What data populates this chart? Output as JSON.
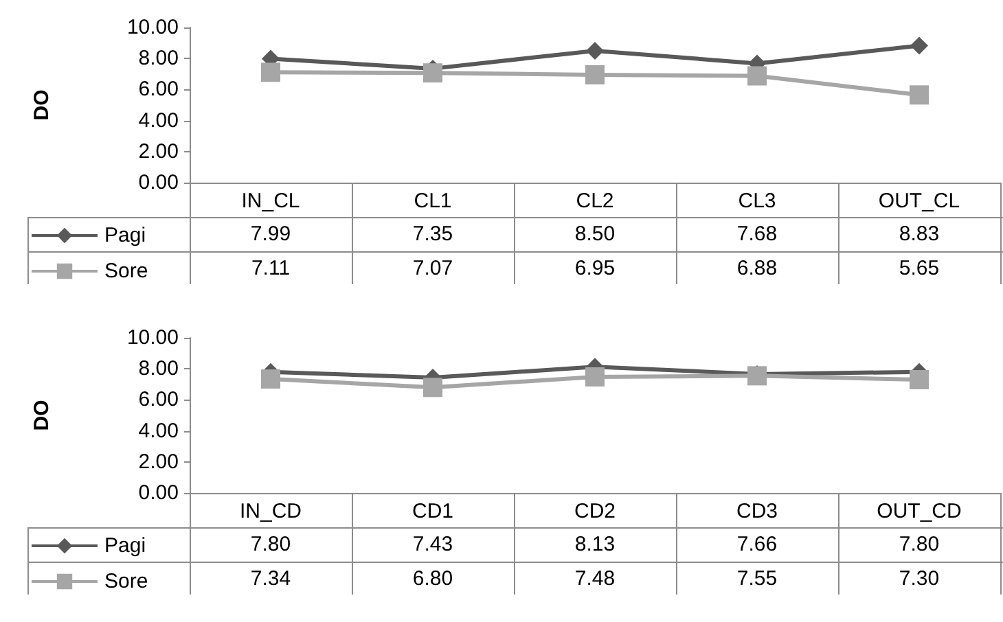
{
  "chart_data": [
    {
      "type": "line",
      "ylabel": "DO",
      "categories": [
        "IN_CL",
        "CL1",
        "CL2",
        "CL3",
        "OUT_CL"
      ],
      "series": [
        {
          "name": "Pagi",
          "color": "#595959",
          "marker": "diamond",
          "values": [
            7.99,
            7.35,
            8.5,
            7.68,
            8.83
          ],
          "value_labels": [
            "7.99",
            "7.35",
            "8.50",
            "7.68",
            "8.83"
          ]
        },
        {
          "name": "Sore",
          "color": "#a6a6a6",
          "marker": "square",
          "values": [
            7.11,
            7.07,
            6.95,
            6.88,
            5.65
          ],
          "value_labels": [
            "7.11",
            "7.07",
            "6.95",
            "6.88",
            "5.65"
          ]
        }
      ],
      "ylim": [
        0,
        10
      ],
      "yticks": [
        {
          "value": 0,
          "label": "0.00"
        },
        {
          "value": 2,
          "label": "2.00"
        },
        {
          "value": 4,
          "label": "4.00"
        },
        {
          "value": 6,
          "label": "6.00"
        },
        {
          "value": 8,
          "label": "8.00"
        },
        {
          "value": 10,
          "label": "10.00"
        }
      ],
      "grid": false,
      "legend": "bottom left"
    },
    {
      "type": "line",
      "ylabel": "DO",
      "categories": [
        "IN_CD",
        "CD1",
        "CD2",
        "CD3",
        "OUT_CD"
      ],
      "series": [
        {
          "name": "Pagi",
          "color": "#595959",
          "marker": "diamond",
          "values": [
            7.8,
            7.43,
            8.13,
            7.66,
            7.8
          ],
          "value_labels": [
            "7.80",
            "7.43",
            "8.13",
            "7.66",
            "7.80"
          ]
        },
        {
          "name": "Sore",
          "color": "#a6a6a6",
          "marker": "square",
          "values": [
            7.34,
            6.8,
            7.48,
            7.55,
            7.3
          ],
          "value_labels": [
            "7.34",
            "6.80",
            "7.48",
            "7.55",
            "7.30"
          ]
        }
      ],
      "ylim": [
        0,
        10
      ],
      "yticks": [
        {
          "value": 0,
          "label": "0.00"
        },
        {
          "value": 2,
          "label": "2.00"
        },
        {
          "value": 4,
          "label": "4.00"
        },
        {
          "value": 6,
          "label": "6.00"
        },
        {
          "value": 8,
          "label": "8.00"
        },
        {
          "value": 10,
          "label": "10.00"
        }
      ],
      "grid": false,
      "legend": "bottom left"
    }
  ]
}
